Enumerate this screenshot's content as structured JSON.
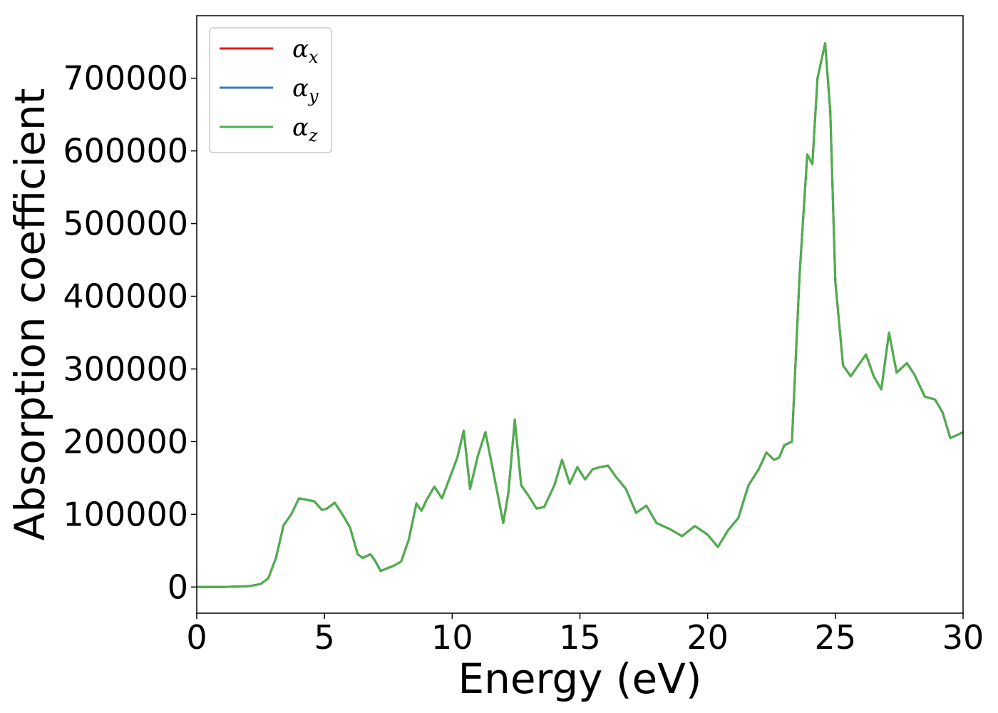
{
  "chart_data": {
    "type": "line",
    "xlabel": "Energy (eV)",
    "ylabel": "Absorption coefficient",
    "xlim": [
      0,
      30
    ],
    "ylim": [
      -36000,
      786000
    ],
    "xticks": [
      0,
      5,
      10,
      15,
      20,
      25,
      30
    ],
    "yticks": [
      0,
      100000,
      200000,
      300000,
      400000,
      500000,
      600000,
      700000
    ],
    "legend_position": "top-left",
    "grid": false,
    "x": [
      0,
      1,
      2,
      2.5,
      2.8,
      3.1,
      3.4,
      3.7,
      4.0,
      4.3,
      4.6,
      4.9,
      5.1,
      5.4,
      5.7,
      6.0,
      6.3,
      6.5,
      6.8,
      7.0,
      7.2,
      7.4,
      7.7,
      8.0,
      8.3,
      8.6,
      8.8,
      9.0,
      9.3,
      9.6,
      9.9,
      10.2,
      10.45,
      10.7,
      11.0,
      11.3,
      11.6,
      12.0,
      12.2,
      12.45,
      12.7,
      13.0,
      13.3,
      13.6,
      14.0,
      14.3,
      14.6,
      14.9,
      15.2,
      15.5,
      15.8,
      16.1,
      16.4,
      16.8,
      17.2,
      17.6,
      18.0,
      18.5,
      19.0,
      19.5,
      20.0,
      20.4,
      20.8,
      21.2,
      21.6,
      22.0,
      22.3,
      22.6,
      22.8,
      23.0,
      23.3,
      23.6,
      23.9,
      24.1,
      24.3,
      24.6,
      24.8,
      25.0,
      25.3,
      25.6,
      25.9,
      26.2,
      26.5,
      26.8,
      27.1,
      27.4,
      27.8,
      28.1,
      28.5,
      28.9,
      29.2,
      29.5,
      29.7,
      30.0
    ],
    "series": [
      {
        "name": "x",
        "color": "#e31a1c",
        "values": [
          0,
          0,
          1000,
          4000,
          12000,
          40000,
          85000,
          100000,
          122000,
          120000,
          118000,
          106000,
          108000,
          116000,
          100000,
          82000,
          45000,
          40000,
          45000,
          35000,
          22000,
          25000,
          29000,
          35000,
          65000,
          115000,
          105000,
          120000,
          138000,
          122000,
          150000,
          178000,
          215000,
          135000,
          180000,
          213000,
          160000,
          88000,
          130000,
          230000,
          140000,
          125000,
          108000,
          110000,
          140000,
          175000,
          142000,
          165000,
          148000,
          162000,
          165000,
          167000,
          152000,
          135000,
          102000,
          112000,
          88000,
          80000,
          70000,
          84000,
          72000,
          55000,
          78000,
          95000,
          140000,
          162000,
          185000,
          175000,
          178000,
          195000,
          200000,
          430000,
          595000,
          582000,
          700000,
          748000,
          655000,
          420000,
          305000,
          290000,
          305000,
          320000,
          290000,
          272000,
          350000,
          295000,
          308000,
          292000,
          262000,
          258000,
          240000,
          205000,
          208000,
          213000
        ]
      },
      {
        "name": "y",
        "color": "#3a78b5",
        "values": [
          0,
          0,
          1000,
          4000,
          12000,
          40000,
          85000,
          100000,
          122000,
          120000,
          118000,
          106000,
          108000,
          116000,
          100000,
          82000,
          45000,
          40000,
          45000,
          35000,
          22000,
          25000,
          29000,
          35000,
          65000,
          115000,
          105000,
          120000,
          138000,
          122000,
          150000,
          178000,
          215000,
          135000,
          180000,
          213000,
          160000,
          88000,
          130000,
          230000,
          140000,
          125000,
          108000,
          110000,
          140000,
          175000,
          142000,
          165000,
          148000,
          162000,
          165000,
          167000,
          152000,
          135000,
          102000,
          112000,
          88000,
          80000,
          70000,
          84000,
          72000,
          55000,
          78000,
          95000,
          140000,
          162000,
          185000,
          175000,
          178000,
          195000,
          200000,
          430000,
          595000,
          582000,
          700000,
          748000,
          655000,
          420000,
          305000,
          290000,
          305000,
          320000,
          290000,
          272000,
          350000,
          295000,
          308000,
          292000,
          262000,
          258000,
          240000,
          205000,
          208000,
          213000
        ]
      },
      {
        "name": "z",
        "color": "#4daf4a",
        "values": [
          0,
          0,
          1000,
          4000,
          12000,
          40000,
          85000,
          100000,
          122000,
          120000,
          118000,
          106000,
          108000,
          116000,
          100000,
          82000,
          45000,
          40000,
          45000,
          35000,
          22000,
          25000,
          29000,
          35000,
          65000,
          115000,
          105000,
          120000,
          138000,
          122000,
          150000,
          178000,
          215000,
          135000,
          180000,
          213000,
          160000,
          88000,
          130000,
          230000,
          140000,
          125000,
          108000,
          110000,
          140000,
          175000,
          142000,
          165000,
          148000,
          162000,
          165000,
          167000,
          152000,
          135000,
          102000,
          112000,
          88000,
          80000,
          70000,
          84000,
          72000,
          55000,
          78000,
          95000,
          140000,
          162000,
          185000,
          175000,
          178000,
          195000,
          200000,
          430000,
          595000,
          582000,
          700000,
          748000,
          655000,
          420000,
          305000,
          290000,
          305000,
          320000,
          290000,
          272000,
          350000,
          295000,
          308000,
          292000,
          262000,
          258000,
          240000,
          205000,
          208000,
          213000
        ]
      }
    ],
    "legend": [
      {
        "symbol": "α",
        "subscript": "x",
        "color": "#e31a1c"
      },
      {
        "symbol": "α",
        "subscript": "y",
        "color": "#3a78b5"
      },
      {
        "symbol": "α",
        "subscript": "z",
        "color": "#4daf4a"
      }
    ]
  }
}
